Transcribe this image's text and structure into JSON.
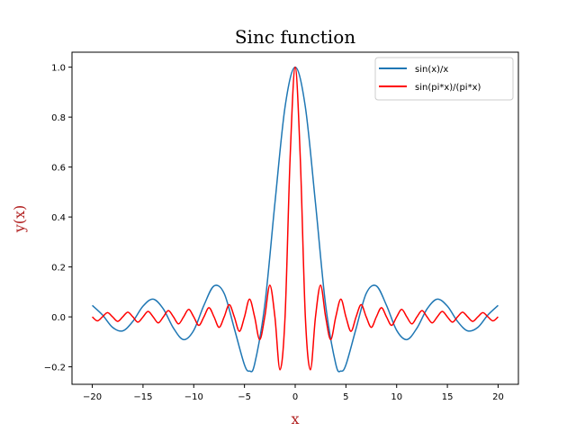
{
  "chart_data": {
    "type": "line",
    "title": "Sinc function",
    "xlabel": "x",
    "ylabel": "y(x)",
    "axis_label_color": "#b22222",
    "xlim": [
      -22,
      22
    ],
    "ylim": [
      -0.27,
      1.06
    ],
    "x_ticks": [
      -20,
      -15,
      -10,
      -5,
      0,
      5,
      10,
      15,
      20
    ],
    "y_ticks": [
      -0.2,
      0.0,
      0.2,
      0.4,
      0.6,
      0.8,
      1.0
    ],
    "x_tick_labels": [
      "−20",
      "−15",
      "−10",
      "−5",
      "0",
      "5",
      "10",
      "15",
      "20"
    ],
    "y_tick_labels": [
      "−0.2",
      "0.0",
      "0.2",
      "0.4",
      "0.6",
      "0.8",
      "1.0"
    ],
    "grid": false,
    "legend_position": "upper-right",
    "series": [
      {
        "name": "sin(x)/x",
        "color": "#1f77b4",
        "x": [
          -20,
          -19,
          -18,
          -17,
          -16,
          -15,
          -14,
          -13,
          -12,
          -11,
          -10,
          -9,
          -8,
          -7,
          -6,
          -5,
          -4.5,
          -4,
          -3,
          -2,
          -1,
          0,
          1,
          2,
          3,
          4,
          4.5,
          5,
          6,
          7,
          8,
          9,
          10,
          11,
          12,
          13,
          14,
          15,
          16,
          17,
          18,
          19,
          20
        ],
        "y": [
          0.046,
          0.008,
          -0.042,
          -0.056,
          -0.018,
          0.043,
          0.071,
          0.032,
          -0.045,
          -0.091,
          -0.054,
          0.046,
          0.124,
          0.094,
          -0.047,
          -0.192,
          -0.217,
          -0.189,
          0.047,
          0.455,
          0.841,
          1.0,
          0.841,
          0.455,
          0.047,
          -0.189,
          -0.217,
          -0.192,
          -0.047,
          0.094,
          0.124,
          0.046,
          -0.054,
          -0.091,
          -0.045,
          0.032,
          0.071,
          0.043,
          -0.018,
          -0.056,
          -0.042,
          0.008,
          0.046
        ]
      },
      {
        "name": "sin(pi*x)/(pi*x)",
        "color": "#ff0000",
        "x": [
          -20,
          -19.5,
          -19,
          -18.5,
          -18,
          -17.5,
          -17,
          -16.5,
          -16,
          -15.5,
          -15,
          -14.5,
          -14,
          -13.5,
          -13,
          -12.5,
          -12,
          -11.5,
          -11,
          -10.5,
          -10,
          -9.5,
          -9,
          -8.5,
          -8,
          -7.5,
          -7,
          -6.5,
          -6,
          -5.5,
          -5,
          -4.5,
          -4,
          -3.5,
          -3,
          -2.5,
          -2,
          -1.5,
          -1,
          -0.5,
          0,
          0.5,
          1,
          1.5,
          2,
          2.5,
          3,
          3.5,
          4,
          4.5,
          5,
          5.5,
          6,
          6.5,
          7,
          7.5,
          8,
          8.5,
          9,
          9.5,
          10,
          10.5,
          11,
          11.5,
          12,
          12.5,
          13,
          13.5,
          14,
          14.5,
          15,
          15.5,
          16,
          16.5,
          17,
          17.5,
          18,
          18.5,
          19,
          19.5,
          20
        ],
        "y": [
          0,
          -0.016,
          0,
          0.017,
          0,
          -0.018,
          0,
          0.019,
          0,
          -0.021,
          0,
          0.022,
          0,
          -0.024,
          0,
          0.025,
          0,
          -0.028,
          0,
          0.03,
          0,
          -0.034,
          0,
          0.037,
          0,
          -0.042,
          0,
          0.049,
          0,
          -0.058,
          0,
          0.071,
          0,
          -0.091,
          0,
          0.127,
          0,
          -0.212,
          0,
          0.637,
          1.0,
          0.637,
          0,
          -0.212,
          0,
          0.127,
          0,
          -0.091,
          0,
          0.071,
          0,
          -0.058,
          0,
          0.049,
          0,
          -0.042,
          0,
          0.037,
          0,
          -0.034,
          0,
          0.03,
          0,
          -0.028,
          0,
          0.025,
          0,
          -0.024,
          0,
          0.022,
          0,
          -0.021,
          0,
          0.019,
          0,
          -0.018,
          0,
          0.017,
          0,
          -0.016,
          0
        ]
      }
    ]
  }
}
